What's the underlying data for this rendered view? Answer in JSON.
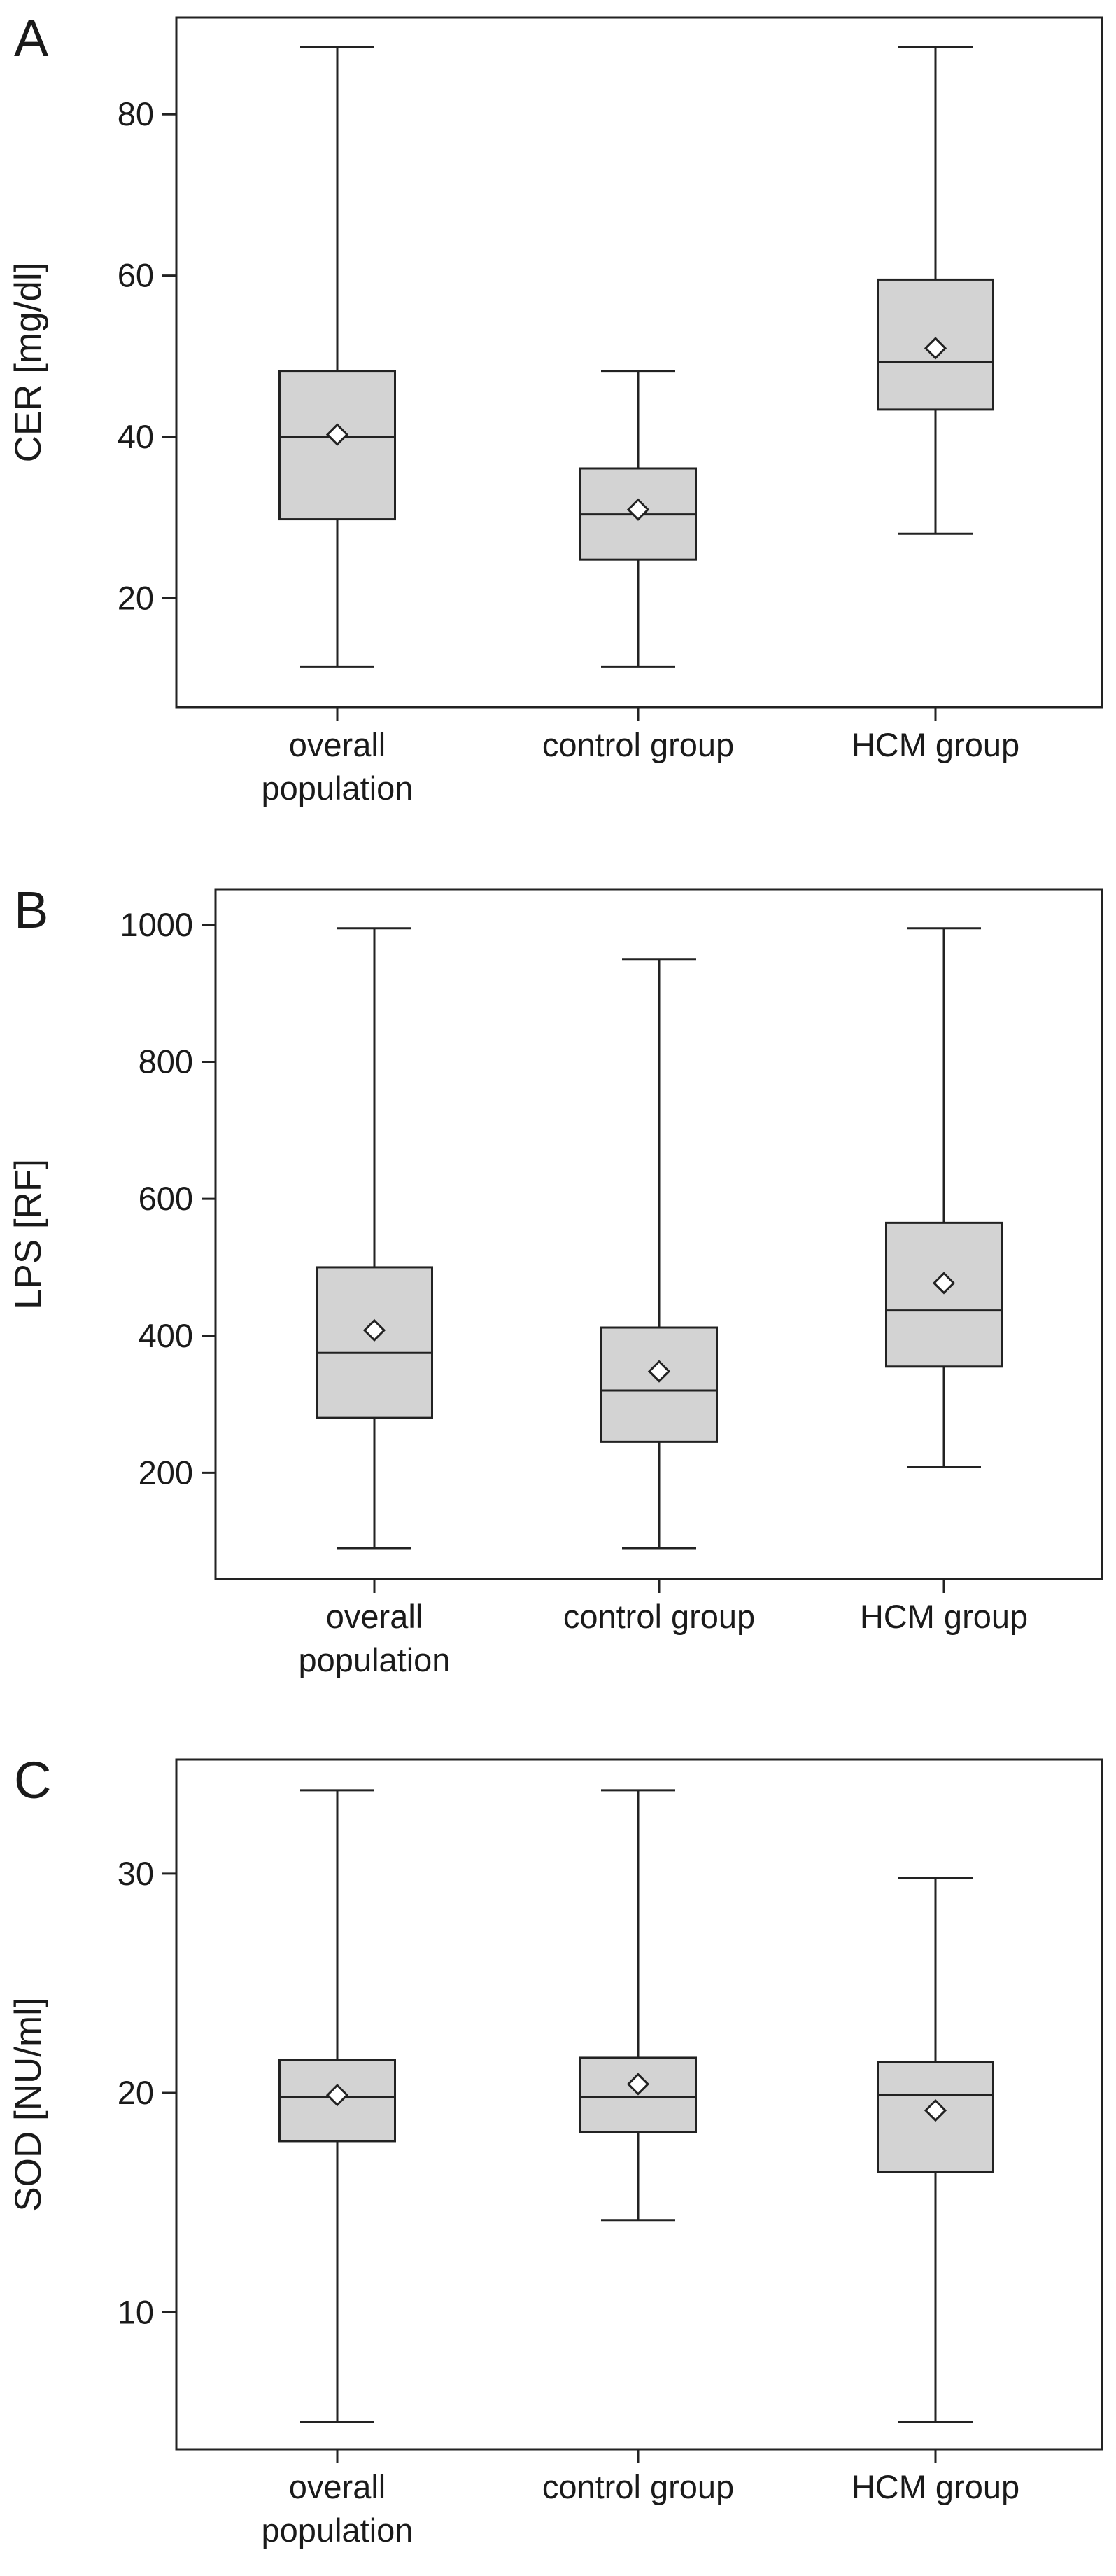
{
  "chart_data": [
    {
      "panel": "A",
      "type": "boxplot",
      "ylabel": "CER [mg/dl]",
      "ylim": [
        6.5,
        92
      ],
      "yticks": [
        20,
        40,
        60,
        80
      ],
      "categories": [
        {
          "label": [
            "overall",
            "population"
          ],
          "min": 11.5,
          "q1": 29.8,
          "median": 40,
          "q3": 48.2,
          "max": 88.4,
          "mean": 40.3
        },
        {
          "label": [
            "control group"
          ],
          "min": 11.5,
          "q1": 24.8,
          "median": 30.4,
          "q3": 36.1,
          "max": 48.2,
          "mean": 31
        },
        {
          "label": [
            "HCM group"
          ],
          "min": 28,
          "q1": 43.4,
          "median": 49.3,
          "q3": 59.5,
          "max": 88.4,
          "mean": 51
        }
      ]
    },
    {
      "panel": "B",
      "type": "boxplot",
      "ylabel": "LPS [RF]",
      "ylim": [
        45,
        1052
      ],
      "yticks": [
        200,
        400,
        600,
        800,
        1000
      ],
      "categories": [
        {
          "label": [
            "overall",
            "population"
          ],
          "min": 90,
          "q1": 280,
          "median": 375,
          "q3": 500,
          "max": 995,
          "mean": 408
        },
        {
          "label": [
            "control group"
          ],
          "min": 90,
          "q1": 245,
          "median": 320,
          "q3": 412,
          "max": 950,
          "mean": 348
        },
        {
          "label": [
            "HCM group"
          ],
          "min": 208,
          "q1": 355,
          "median": 437,
          "q3": 565,
          "max": 995,
          "mean": 477
        }
      ]
    },
    {
      "panel": "C",
      "type": "boxplot",
      "ylabel": "SOD [NU/ml]",
      "ylim": [
        3.75,
        35.2
      ],
      "yticks": [
        10,
        20,
        30
      ],
      "categories": [
        {
          "label": [
            "overall",
            "population"
          ],
          "min": 5.0,
          "q1": 17.8,
          "median": 19.8,
          "q3": 21.5,
          "max": 33.8,
          "mean": 19.9
        },
        {
          "label": [
            "control group"
          ],
          "min": 14.2,
          "q1": 18.2,
          "median": 19.8,
          "q3": 21.6,
          "max": 33.8,
          "mean": 20.4
        },
        {
          "label": [
            "HCM group"
          ],
          "min": 5.0,
          "q1": 16.4,
          "median": 19.9,
          "q3": 21.4,
          "max": 29.8,
          "mean": 19.2
        }
      ]
    }
  ]
}
